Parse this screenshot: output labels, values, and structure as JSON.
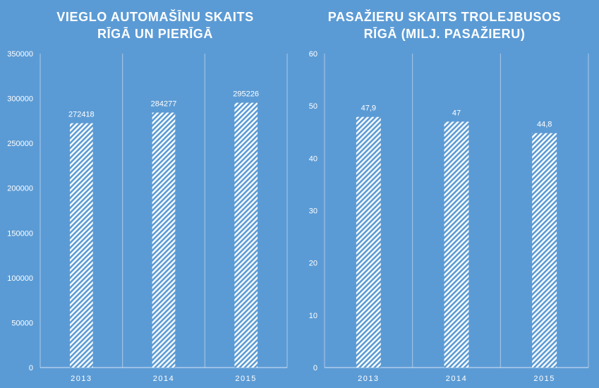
{
  "chart_data": [
    {
      "type": "bar",
      "title": [
        "VIEGLO AUTOMAŠĪNU SKAITS",
        "RĪGĀ UN PIERĪGĀ"
      ],
      "categories": [
        "2013",
        "2014",
        "2015"
      ],
      "values": [
        272418,
        284277,
        295226
      ],
      "value_labels": [
        "272418",
        "284277",
        "295226"
      ],
      "ylim": [
        0,
        350000
      ],
      "yticks": [
        "0",
        "50000",
        "100000",
        "150000",
        "200000",
        "250000",
        "300000",
        "350000"
      ],
      "xlabel": "",
      "ylabel": "",
      "grid": "vertical",
      "legend": "none",
      "bar_fill": "hatched white",
      "colors": {
        "background": "#5b9bd5",
        "bars": "#ffffff",
        "text": "#ffffff"
      }
    },
    {
      "type": "bar",
      "title": [
        "PASAŽIERU SKAITS TROLEJBUSOS",
        "RĪGĀ (MILJ. PASAŽIERU)"
      ],
      "categories": [
        "2013",
        "2014",
        "2015"
      ],
      "values": [
        47.9,
        47,
        44.8
      ],
      "value_labels": [
        "47,9",
        "47",
        "44,8"
      ],
      "ylim": [
        0,
        60
      ],
      "yticks": [
        "0",
        "10",
        "20",
        "30",
        "40",
        "50",
        "60"
      ],
      "xlabel": "",
      "ylabel": "",
      "grid": "vertical",
      "legend": "none",
      "bar_fill": "hatched white",
      "colors": {
        "background": "#5b9bd5",
        "bars": "#ffffff",
        "text": "#ffffff"
      }
    }
  ]
}
